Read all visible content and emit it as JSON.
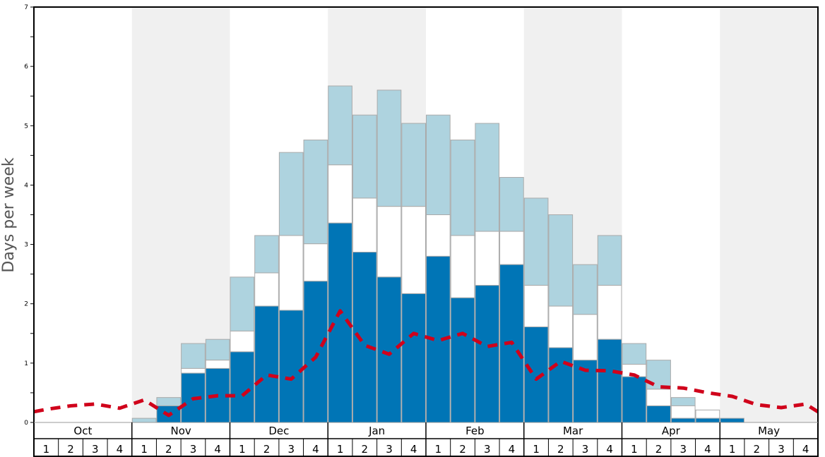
{
  "chart_data": {
    "type": "bar",
    "stacked": true,
    "ylabel": "Days per week",
    "ylim": [
      0,
      7
    ],
    "yticks": [
      "0",
      "1",
      "2",
      "3",
      "4",
      "5",
      "6",
      "7"
    ],
    "months": [
      "Oct",
      "Nov",
      "Dec",
      "Jan",
      "Feb",
      "Mar",
      "Apr",
      "May"
    ],
    "week_labels": [
      "1",
      "2",
      "3",
      "4"
    ],
    "colors": {
      "dark": "#0075b6",
      "mid": "#ffffff",
      "light": "#aed3df",
      "line": "#d0021b",
      "band": "#f0f0f0"
    },
    "series_note": "cumulative tops per week: dark level, mid (white) top, light top",
    "dark": [
      0,
      0,
      0,
      0,
      0,
      0.28,
      0.83,
      0.91,
      1.19,
      1.96,
      1.89,
      2.38,
      3.36,
      2.87,
      2.45,
      2.17,
      2.8,
      2.1,
      2.31,
      2.66,
      1.61,
      1.26,
      1.05,
      1.4,
      0.77,
      0.28,
      0.07,
      0.07,
      0.07,
      0,
      0,
      0
    ],
    "mid": [
      0,
      0,
      0,
      0,
      0,
      0.28,
      0.91,
      1.05,
      1.54,
      2.52,
      3.15,
      3.01,
      4.34,
      3.78,
      3.64,
      3.64,
      3.5,
      3.15,
      3.22,
      3.22,
      2.31,
      1.96,
      1.82,
      2.31,
      0.98,
      0.56,
      0.28,
      0.21,
      0.07,
      0,
      0,
      0
    ],
    "light": [
      0,
      0,
      0,
      0,
      0.07,
      0.42,
      1.33,
      1.4,
      2.45,
      3.15,
      4.55,
      4.76,
      5.67,
      5.18,
      5.6,
      5.04,
      5.18,
      4.76,
      5.04,
      4.13,
      3.78,
      3.5,
      2.66,
      3.15,
      1.33,
      1.05,
      0.42,
      0.21,
      0.07,
      0,
      0,
      0
    ],
    "line": [
      0.22,
      0.28,
      0.31,
      0.24,
      0.38,
      0.12,
      0.4,
      0.45,
      0.45,
      0.8,
      0.73,
      1.1,
      1.88,
      1.3,
      1.15,
      1.5,
      1.38,
      1.5,
      1.28,
      1.35,
      0.73,
      1.03,
      0.88,
      0.87,
      0.8,
      0.6,
      0.58,
      0.5,
      0.44,
      0.3,
      0.25,
      0.31
    ],
    "line_start": 0.18,
    "line_end": 0.18
  }
}
